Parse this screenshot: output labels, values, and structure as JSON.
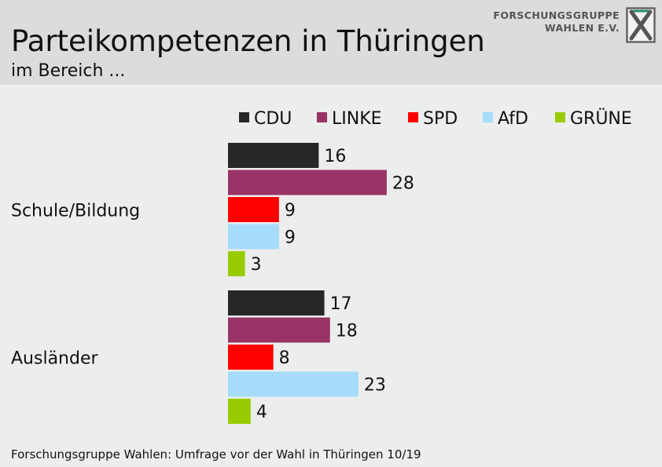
{
  "header": {
    "title": "Parteikompetenzen in Thüringen",
    "subtitle": "im Bereich ..."
  },
  "logo": {
    "line1": "FORSCHUNGSGRUPPE",
    "line2": "WAHLEN E.V.",
    "icon": "ballot-cross-icon"
  },
  "footer": {
    "source": "Forschungsgruppe Wahlen: Umfrage vor der Wahl in Thüringen 10/19"
  },
  "chart_data": {
    "type": "bar",
    "orientation": "horizontal",
    "categories": [
      "Schule/Bildung",
      "Ausländer"
    ],
    "series": [
      {
        "name": "CDU",
        "color": "#272727",
        "values": [
          16,
          17
        ]
      },
      {
        "name": "LINKE",
        "color": "#993366",
        "values": [
          28,
          18
        ]
      },
      {
        "name": "SPD",
        "color": "#ff0000",
        "values": [
          9,
          8
        ]
      },
      {
        "name": "AfD",
        "color": "#a6dcfb",
        "values": [
          9,
          23
        ]
      },
      {
        "name": "GRÜNE",
        "color": "#99cc00",
        "values": [
          3,
          4
        ]
      }
    ],
    "legend_position": "top",
    "grid": false,
    "data_labels": true
  }
}
